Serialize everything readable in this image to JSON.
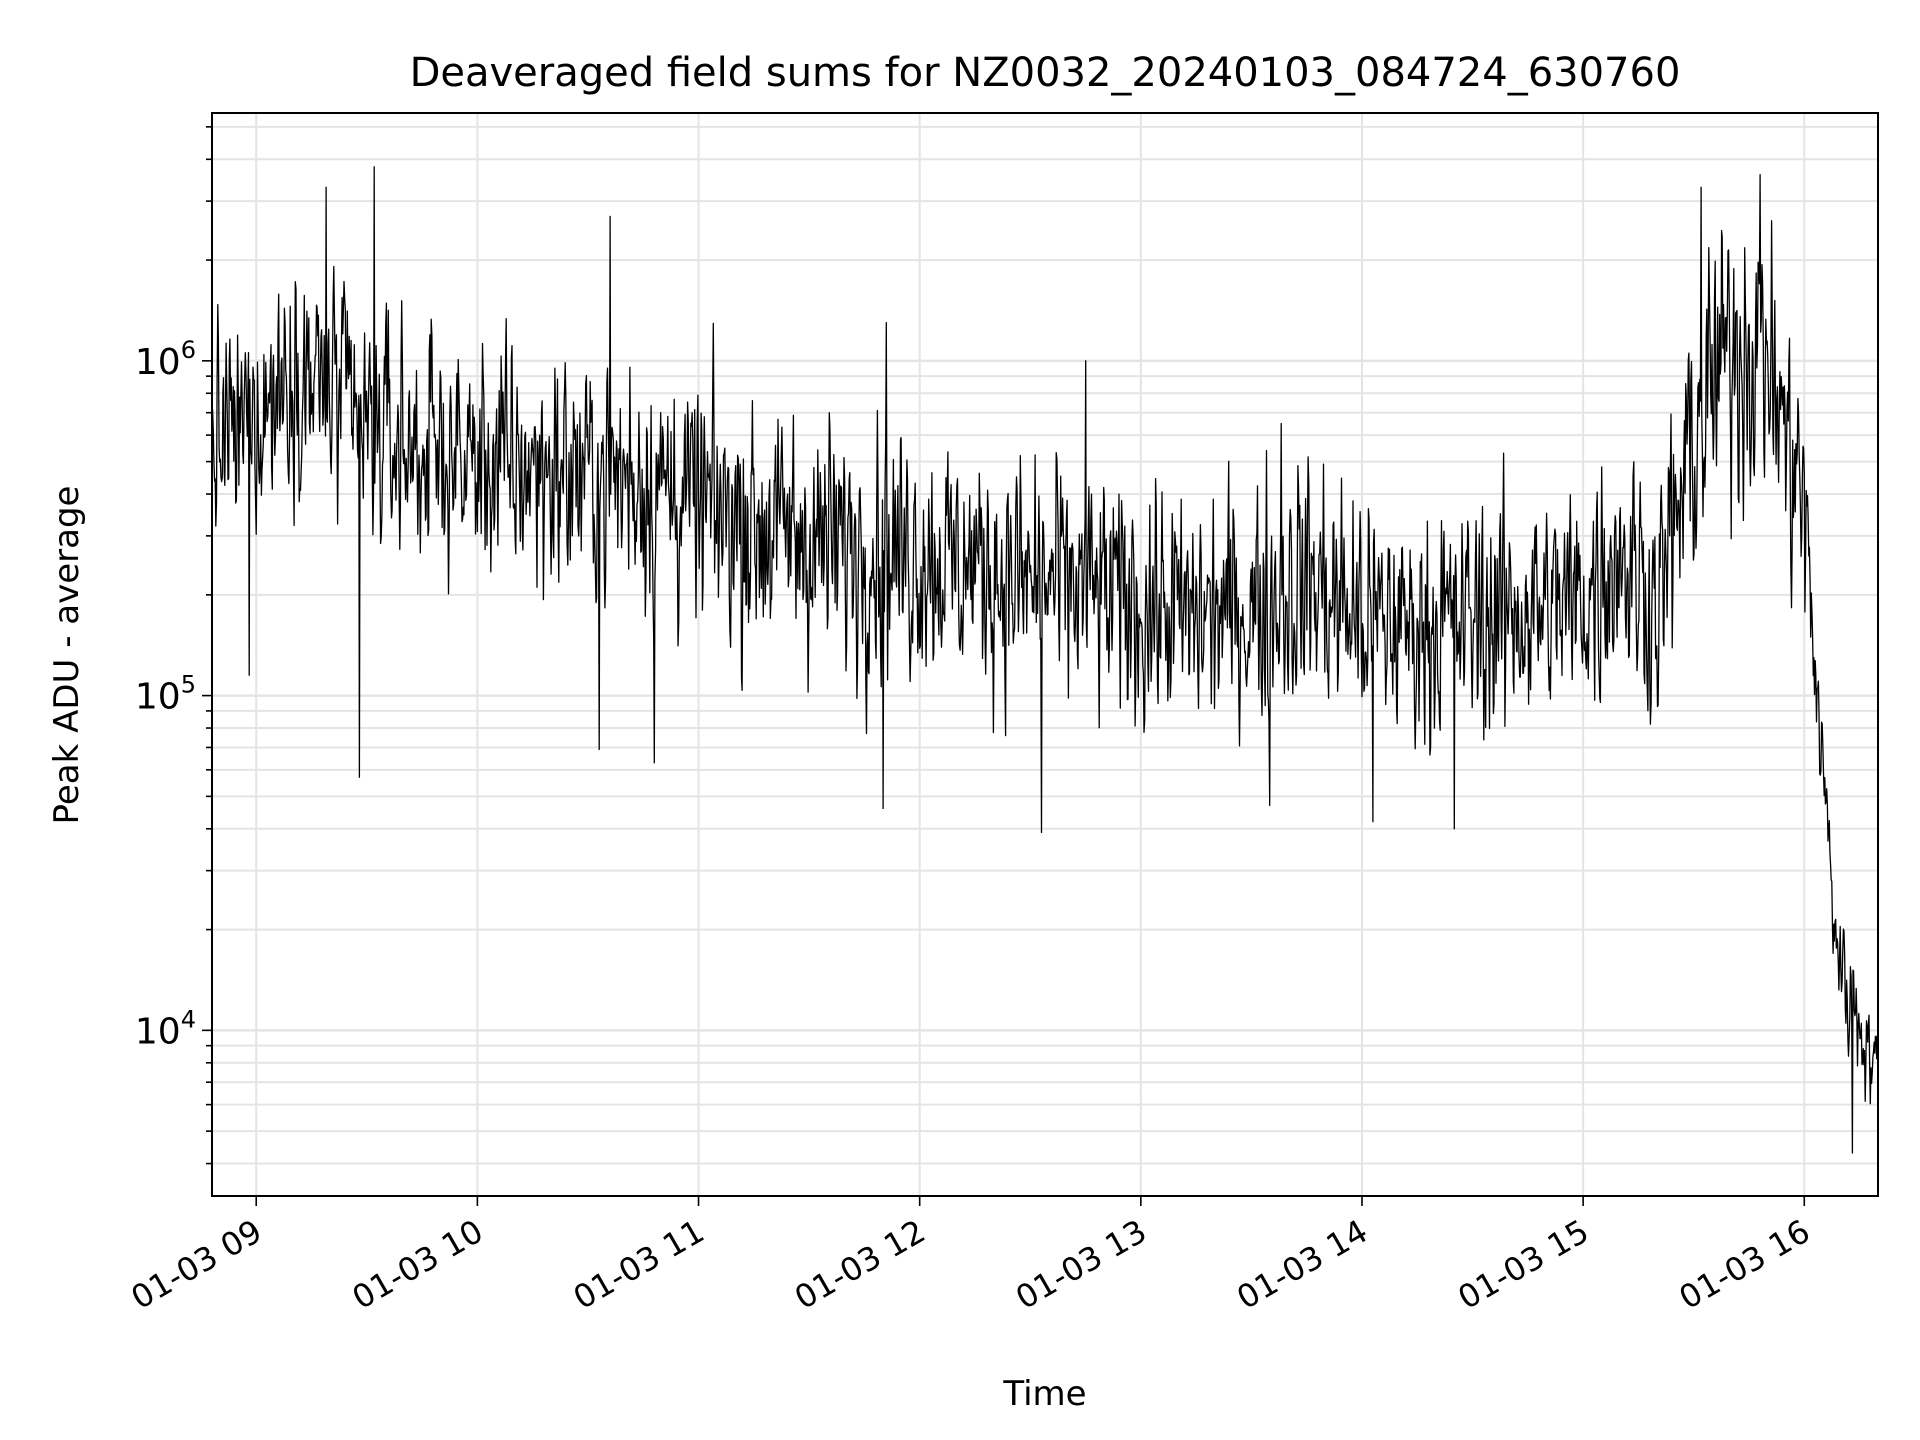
{
  "chart_data": {
    "type": "line",
    "title": "Deaveraged field sums for NZ0032_20240103_084724_630760",
    "xlabel": "Time",
    "ylabel": "Peak ADU - average",
    "yscale": "log",
    "ylim": [
      3200,
      5500000
    ],
    "xlim": [
      "2024-01-03T08:48:00",
      "2024-01-03T16:20:00"
    ],
    "grid": true,
    "line_color": "#000000",
    "grid_color": "#e4e4e4",
    "x_ticks": [
      {
        "value": "2024-01-03T09:00:00",
        "label": "01-03 09"
      },
      {
        "value": "2024-01-03T10:00:00",
        "label": "01-03 10"
      },
      {
        "value": "2024-01-03T11:00:00",
        "label": "01-03 11"
      },
      {
        "value": "2024-01-03T12:00:00",
        "label": "01-03 12"
      },
      {
        "value": "2024-01-03T13:00:00",
        "label": "01-03 13"
      },
      {
        "value": "2024-01-03T14:00:00",
        "label": "01-03 14"
      },
      {
        "value": "2024-01-03T15:00:00",
        "label": "01-03 15"
      },
      {
        "value": "2024-01-03T16:00:00",
        "label": "01-03 16"
      }
    ],
    "y_ticks": [
      {
        "value": 10000,
        "base": "10",
        "exp": "4"
      },
      {
        "value": 100000,
        "base": "10",
        "exp": "5"
      },
      {
        "value": 1000000,
        "base": "10",
        "exp": "6"
      }
    ],
    "series": [
      {
        "x": [
          "2024-01-03T08:48:00",
          "2024-01-03T09:00:00",
          "2024-01-03T09:10:00",
          "2024-01-03T09:20:00",
          "2024-01-03T09:30:00",
          "2024-01-03T09:40:00",
          "2024-01-03T09:50:00",
          "2024-01-03T10:00:00",
          "2024-01-03T10:15:00",
          "2024-01-03T10:30:00",
          "2024-01-03T10:45:00",
          "2024-01-03T11:00:00",
          "2024-01-03T11:15:00",
          "2024-01-03T11:30:00",
          "2024-01-03T11:45:00",
          "2024-01-03T12:00:00",
          "2024-01-03T12:15:00",
          "2024-01-03T12:30:00",
          "2024-01-03T12:45:00",
          "2024-01-03T13:00:00",
          "2024-01-03T13:15:00",
          "2024-01-03T13:30:00",
          "2024-01-03T13:45:00",
          "2024-01-03T14:00:00",
          "2024-01-03T14:15:00",
          "2024-01-03T14:30:00",
          "2024-01-03T14:45:00",
          "2024-01-03T15:00:00",
          "2024-01-03T15:10:00",
          "2024-01-03T15:20:00",
          "2024-01-03T15:30:00",
          "2024-01-03T15:40:00",
          "2024-01-03T15:50:00",
          "2024-01-03T15:55:00",
          "2024-01-03T16:00:00",
          "2024-01-03T16:03:00",
          "2024-01-03T16:06:00",
          "2024-01-03T16:09:00",
          "2024-01-03T16:12:00",
          "2024-01-03T16:15:00",
          "2024-01-03T16:20:00"
        ],
        "y": [
          550000,
          700000,
          900000,
          800000,
          600000,
          550000,
          520000,
          500000,
          480000,
          470000,
          450000,
          380000,
          330000,
          300000,
          290000,
          270000,
          240000,
          220000,
          210000,
          180000,
          170000,
          180000,
          230000,
          170000,
          160000,
          170000,
          180000,
          190000,
          280000,
          180000,
          600000,
          1200000,
          1100000,
          600000,
          400000,
          120000,
          45000,
          18000,
          14000,
          11000,
          7500
        ],
        "low": [
          220000,
          250000,
          380000,
          320000,
          250000,
          230000,
          200000,
          180000,
          170000,
          160000,
          150000,
          130000,
          110000,
          100000,
          95000,
          90000,
          85000,
          80000,
          75000,
          70000,
          68000,
          65000,
          70000,
          62000,
          60000,
          62000,
          65000,
          70000,
          90000,
          65000,
          150000,
          300000,
          280000,
          200000,
          90000,
          60000,
          20000,
          8000,
          7000,
          6000,
          4300
        ],
        "high": [
          1300000,
          1800000,
          2600000,
          2300000,
          1700000,
          1600000,
          1500000,
          1400000,
          1300000,
          1250000,
          1200000,
          1000000,
          850000,
          780000,
          750000,
          720000,
          680000,
          620000,
          580000,
          520000,
          480000,
          500000,
          620000,
          480000,
          460000,
          470000,
          480000,
          520000,
          780000,
          520000,
          2000000,
          3300000,
          3000000,
          1800000,
          900000,
          200000,
          70000,
          25000,
          20000,
          16000,
          12000
        ],
        "peaks": [
          {
            "x": "2024-01-03T09:19:00",
            "y": 3300000
          },
          {
            "x": "2024-01-03T09:32:00",
            "y": 3800000
          },
          {
            "x": "2024-01-03T10:36:00",
            "y": 2700000
          },
          {
            "x": "2024-01-03T11:51:00",
            "y": 1300000
          },
          {
            "x": "2024-01-03T12:45:00",
            "y": 1000000
          },
          {
            "x": "2024-01-03T13:38:00",
            "y": 650000
          },
          {
            "x": "2024-01-03T15:32:00",
            "y": 3300000
          },
          {
            "x": "2024-01-03T15:48:00",
            "y": 3600000
          }
        ],
        "dips": [
          {
            "x": "2024-01-03T08:58:00",
            "y": 115000
          },
          {
            "x": "2024-01-03T09:28:00",
            "y": 57000
          },
          {
            "x": "2024-01-03T10:33:00",
            "y": 69000
          },
          {
            "x": "2024-01-03T10:48:00",
            "y": 63000
          },
          {
            "x": "2024-01-03T11:50:00",
            "y": 46000
          },
          {
            "x": "2024-01-03T12:33:00",
            "y": 39000
          },
          {
            "x": "2024-01-03T13:35:00",
            "y": 47000
          },
          {
            "x": "2024-01-03T14:03:00",
            "y": 42000
          },
          {
            "x": "2024-01-03T14:25:00",
            "y": 40000
          },
          {
            "x": "2024-01-03T16:13:00",
            "y": 4300
          }
        ]
      }
    ]
  }
}
